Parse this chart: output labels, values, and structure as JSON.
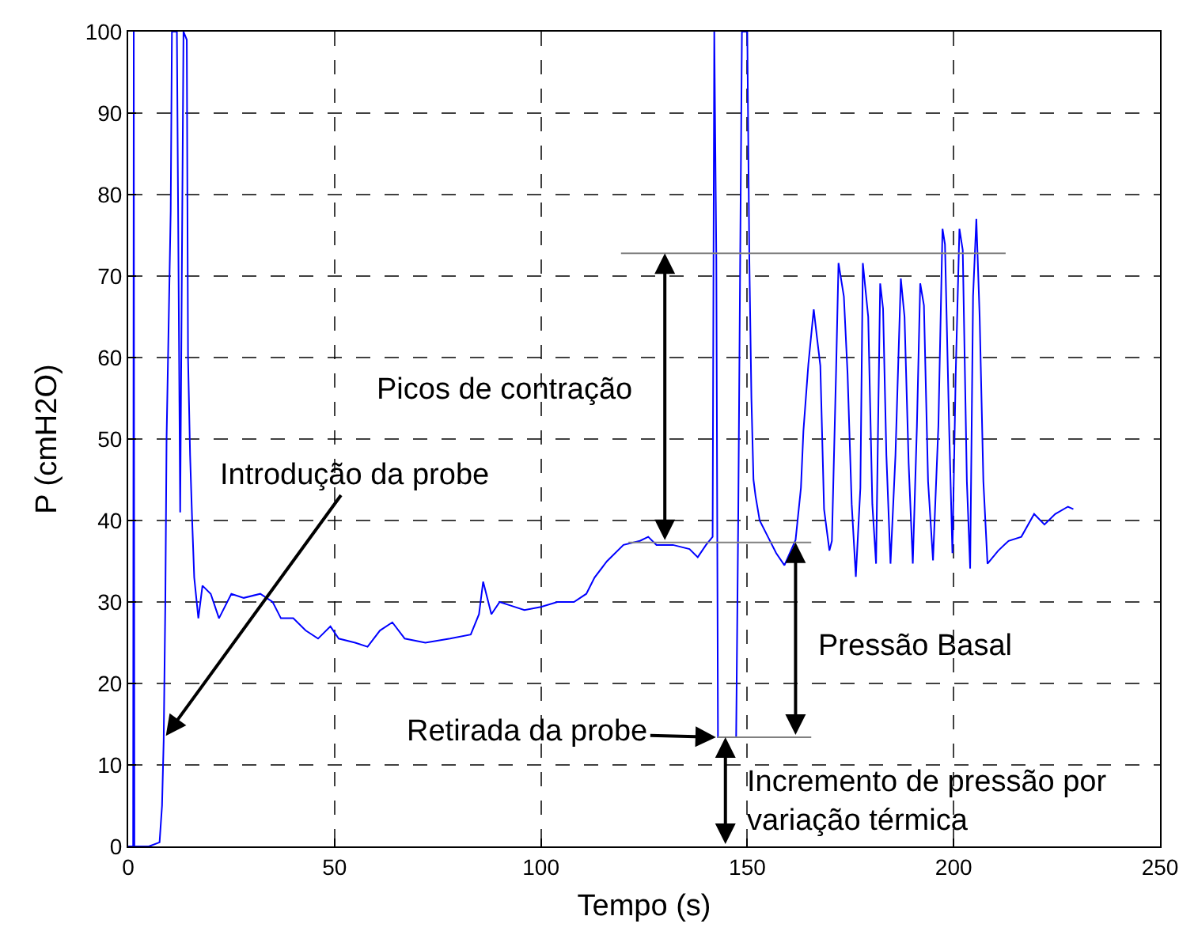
{
  "chart_data": {
    "type": "line",
    "xlabel": "Tempo (s)",
    "ylabel": "P (cmH2O)",
    "xlim": [
      0,
      250
    ],
    "xticks": [
      0,
      50,
      100,
      150,
      200,
      250
    ],
    "ylim": [
      0,
      100
    ],
    "yticks": [
      0,
      10,
      20,
      30,
      40,
      50,
      60,
      70,
      80,
      90,
      100
    ],
    "grid": true,
    "line_style": "solid",
    "marker": "none",
    "series": [
      {
        "color": "#0000ff",
        "x": [
          0,
          1.2,
          1.35,
          1.5,
          5,
          7.6,
          8.2,
          8.6,
          9,
          9.3,
          10.3,
          10.6,
          11.8,
          12.6,
          13.4,
          14.2,
          14.5,
          15,
          15.5,
          16,
          17,
          18,
          20,
          22,
          25,
          28,
          32,
          35,
          37,
          40,
          43,
          46,
          49,
          51,
          55,
          58,
          61,
          64,
          67,
          72,
          78,
          83,
          85,
          86,
          88,
          90,
          93,
          96,
          100,
          104,
          108,
          111,
          113,
          116,
          120,
          124,
          126,
          128,
          132,
          136,
          138,
          140,
          141.6,
          142,
          142.5,
          142.9,
          147.3,
          147.8,
          148.7,
          149.1,
          150,
          150.5,
          151,
          151.5,
          152,
          153,
          155,
          157,
          159,
          161.7,
          163,
          163.6,
          164.8,
          166.1,
          166.9,
          167.7,
          168.6,
          169.9,
          170.5,
          171.5,
          172.1,
          173.4,
          174.3,
          175.3,
          176.3,
          177.4,
          178,
          179.3,
          180.3,
          181.2,
          182.2,
          182.9,
          183.7,
          184.7,
          185.9,
          187.2,
          188.1,
          189.1,
          190.1,
          191.1,
          191.9,
          192.8,
          193.8,
          195,
          196.3,
          197.3,
          197.9,
          198.9,
          199.7,
          200.5,
          201.4,
          202.2,
          203.2,
          204,
          204.7,
          205.5,
          206.3,
          207.2,
          208.2,
          210.8,
          213.3,
          216.4,
          219.5,
          222,
          224.6,
          227.7,
          229
        ],
        "values": [
          0,
          0,
          100,
          0,
          0,
          0.5,
          5,
          13,
          30,
          50,
          78,
          100,
          100,
          41,
          100,
          99,
          60,
          48,
          40,
          33,
          28,
          32,
          31,
          28,
          31,
          30.5,
          31,
          30,
          28,
          28,
          26.5,
          25.5,
          27,
          25.5,
          25,
          24.5,
          26.5,
          27.5,
          25.5,
          25,
          25.5,
          26,
          28.5,
          32.5,
          28.5,
          30,
          29.5,
          29,
          29.4,
          30,
          30,
          31,
          33,
          35,
          37,
          37.5,
          38,
          37,
          37,
          36.5,
          35.5,
          37,
          38,
          100,
          72,
          13.4,
          13.4,
          40,
          100,
          100,
          100,
          72,
          55,
          45,
          43,
          40,
          38,
          36,
          34.5,
          37.6,
          44,
          51,
          59.2,
          65.9,
          62.4,
          59,
          41.4,
          36.3,
          37.5,
          58,
          71.6,
          67.5,
          58,
          42,
          33.1,
          44,
          71.6,
          65,
          42,
          34.7,
          69.1,
          66,
          48,
          34.7,
          48,
          69.7,
          65,
          47,
          34.7,
          51.6,
          69.1,
          66.4,
          44.8,
          35.1,
          51.6,
          75.8,
          73.9,
          51.6,
          36,
          58,
          75.8,
          73.2,
          44.8,
          34.1,
          67.5,
          77,
          65,
          44.8,
          34.7,
          36.3,
          37.5,
          38,
          40.8,
          39.5,
          40.8,
          41.7,
          41.4
        ]
      },
      {
        "color": "#808080",
        "x": [
          119.4,
          212.6
        ],
        "values": [
          72.8,
          72.8
        ]
      },
      {
        "color": "#808080",
        "x": [
          121.2,
          165.5
        ],
        "values": [
          37.3,
          37.3
        ]
      },
      {
        "color": "#808080",
        "x": [
          142.8,
          165.5
        ],
        "values": [
          13.4,
          13.4
        ]
      }
    ],
    "annotations": [
      {
        "text": "Introdução da probe",
        "x": 8.9,
        "y": 13.4
      },
      {
        "text": "Retirada da probe",
        "x": 142.8,
        "y": 13.4
      },
      "Picos de contração",
      "Pressão Basal",
      "Incremento de pressão por\nvariação térmica"
    ]
  }
}
